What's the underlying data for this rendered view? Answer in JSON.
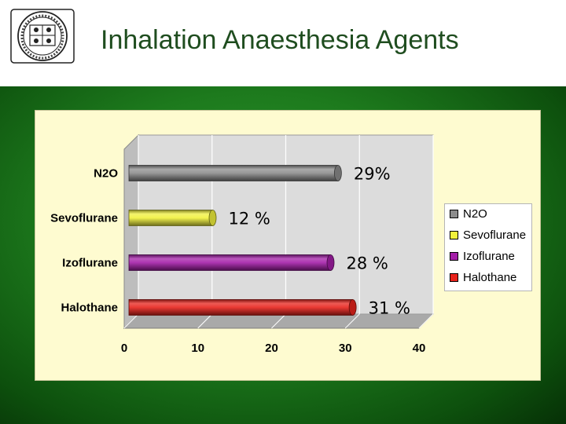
{
  "slide": {
    "title": "Inhalation Anaesthesia Agents"
  },
  "colors": {
    "title": "#1f4d1f",
    "panel": "#fefbd0",
    "plot_back": "#dcdcdc",
    "grid": "#ffffff"
  },
  "chart_data": {
    "type": "bar",
    "orientation": "horizontal",
    "style": "3d-cylinder",
    "categories": [
      "N2O",
      "Sevoflurane",
      "Izoflurane",
      "Halothane"
    ],
    "values": [
      29,
      12,
      28,
      31
    ],
    "data_labels": [
      "29%",
      "12 %",
      "28 %",
      "31 %"
    ],
    "series_colors": [
      "#8c8c8c",
      "#f2f23c",
      "#a41ea8",
      "#e8231c"
    ],
    "xlim": [
      0,
      40
    ],
    "xticks": [
      "0",
      "10",
      "20",
      "30",
      "40"
    ],
    "grid": true,
    "legend": {
      "position": "right",
      "entries": [
        "N2O",
        "Sevoflurane",
        "Izoflurane",
        "Halothane"
      ]
    }
  }
}
